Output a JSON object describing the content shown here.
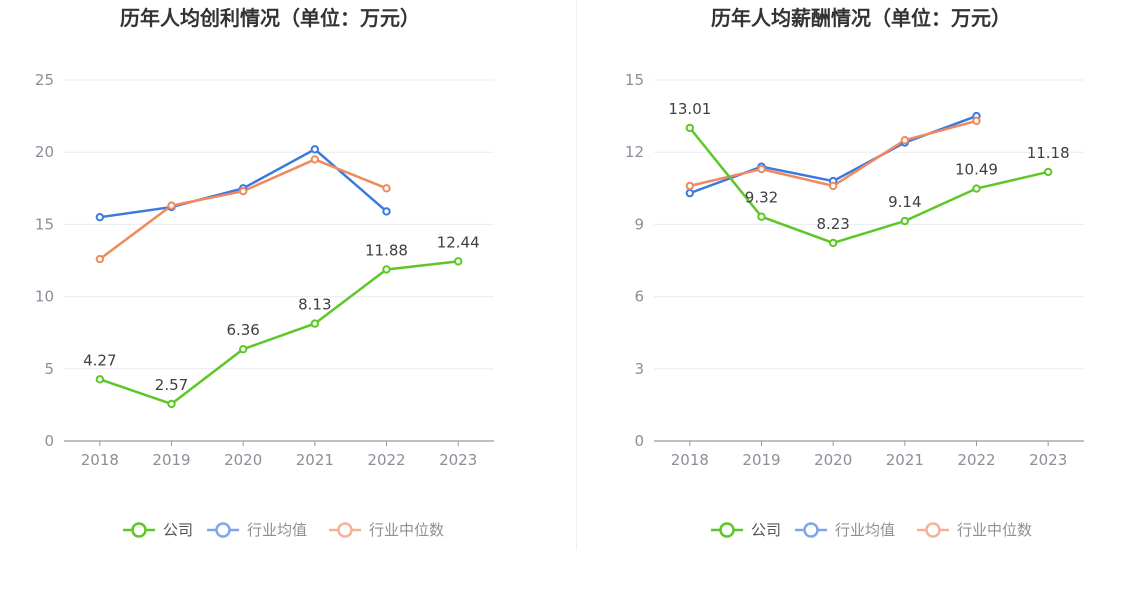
{
  "legend": [
    "公司",
    "行业均值",
    "行业中位数"
  ],
  "colors": {
    "company": "#5cc726",
    "avg": "#3b78e0",
    "median": "#f08a5d",
    "grid": "#e8ebf3",
    "axis": "#999999"
  },
  "chart_data": [
    {
      "type": "line",
      "title": "历年人均创利情况（单位：万元）",
      "categories": [
        "2018",
        "2019",
        "2020",
        "2021",
        "2022",
        "2023"
      ],
      "ylim": [
        0,
        25
      ],
      "yticks": [
        0,
        5,
        10,
        15,
        20,
        25
      ],
      "grid": true,
      "legend_position": "bottom",
      "series": [
        {
          "name": "公司",
          "values": [
            4.27,
            2.57,
            6.36,
            8.13,
            11.88,
            12.44
          ],
          "labels": [
            "4.27",
            "2.57",
            "6.36",
            "8.13",
            "11.88",
            "12.44"
          ]
        },
        {
          "name": "行业均值",
          "values": [
            15.5,
            16.2,
            17.5,
            20.2,
            15.9,
            null
          ]
        },
        {
          "name": "行业中位数",
          "values": [
            12.6,
            16.3,
            17.3,
            19.5,
            17.5,
            null
          ]
        }
      ]
    },
    {
      "type": "line",
      "title": "历年人均薪酬情况（单位：万元）",
      "categories": [
        "2018",
        "2019",
        "2020",
        "2021",
        "2022",
        "2023"
      ],
      "ylim": [
        0,
        15
      ],
      "yticks": [
        0,
        3,
        6,
        9,
        12,
        15
      ],
      "grid": true,
      "legend_position": "bottom",
      "series": [
        {
          "name": "公司",
          "values": [
            13.01,
            9.32,
            8.23,
            9.14,
            10.49,
            11.18
          ],
          "labels": [
            "13.01",
            "9.32",
            "8.23",
            "9.14",
            "10.49",
            "11.18"
          ]
        },
        {
          "name": "行业均值",
          "values": [
            10.3,
            11.4,
            10.8,
            12.4,
            13.5,
            null
          ]
        },
        {
          "name": "行业中位数",
          "values": [
            10.6,
            11.3,
            10.6,
            12.5,
            13.3,
            null
          ]
        }
      ]
    }
  ]
}
